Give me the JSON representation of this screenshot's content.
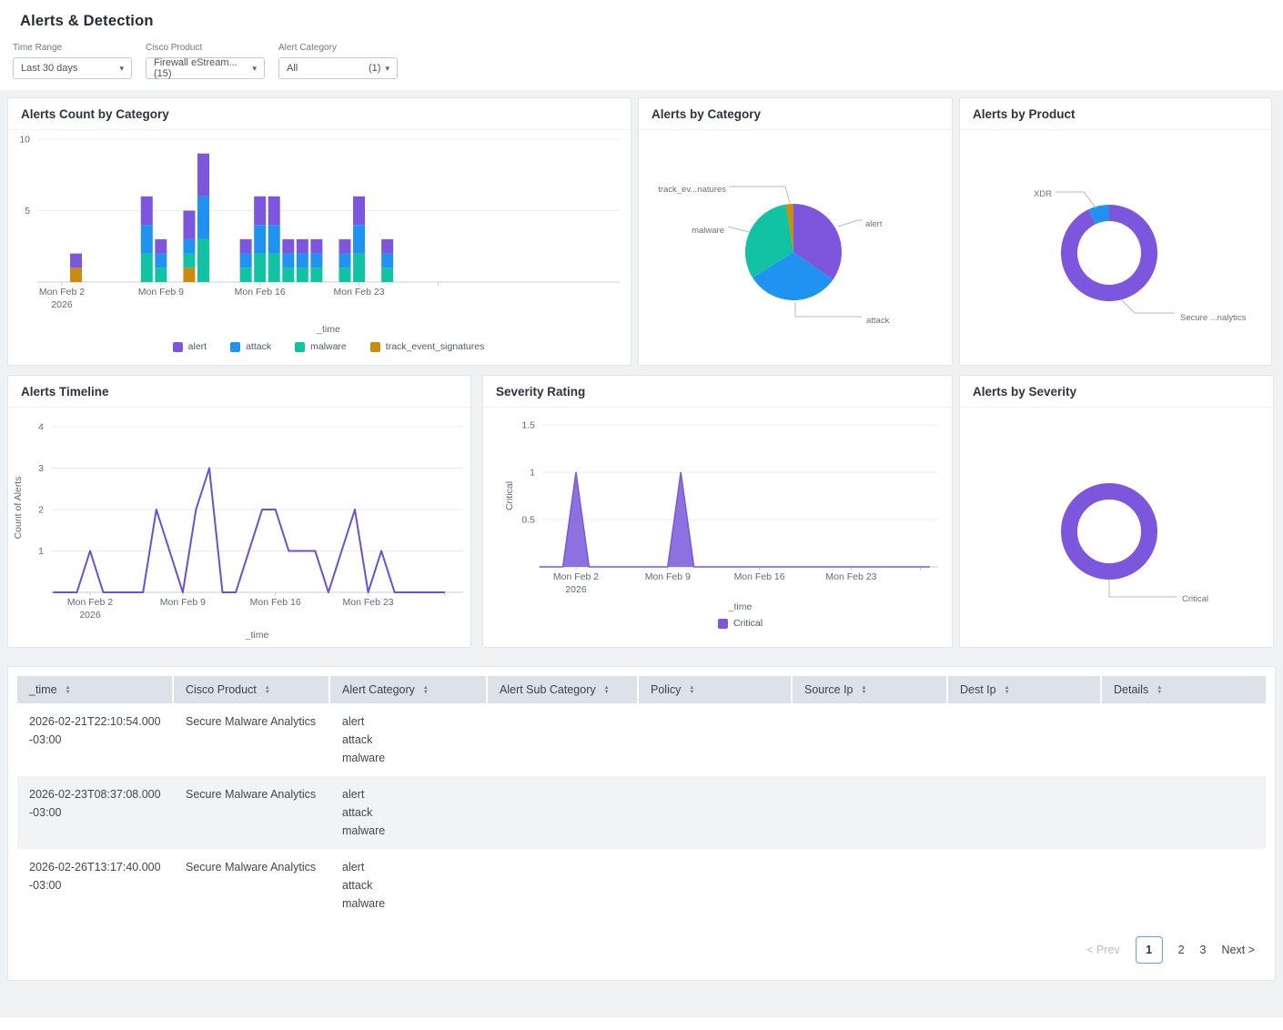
{
  "page": {
    "title": "Alerts & Detection"
  },
  "icons": {
    "dropdown_caret": "▾",
    "sort_asc": "▲",
    "sort_desc": "▼",
    "prev_chevron": "<",
    "next_chevron": ">"
  },
  "filters": {
    "time_range": {
      "label": "Time Range",
      "value": "Last 30 days"
    },
    "cisco_product": {
      "label": "Cisco Product",
      "value": "Firewall eStream... (15)"
    },
    "alert_category": {
      "label": "Alert Category",
      "value": "All",
      "count": "(1)"
    }
  },
  "colors": {
    "alert": "#7c56dd",
    "attack": "#1f93ef",
    "malware": "#11c3a2",
    "track_event_signatures": "#cb8b0e",
    "critical": "#7c56dd",
    "xdr": "#1f93ef"
  },
  "chart_data": [
    {
      "id": "alerts_count_by_category",
      "type": "bar",
      "stacked": true,
      "title": "Alerts Count by Category",
      "xlabel": "_time",
      "ylim": [
        0,
        10
      ],
      "y_ticks": [
        5,
        10
      ],
      "x_ticks": [
        {
          "day": 2,
          "lines": [
            "Mon Feb 2",
            "2026"
          ]
        },
        {
          "day": 9,
          "lines": [
            "Mon Feb 9"
          ]
        },
        {
          "day": 16,
          "lines": [
            "Mon Feb 16"
          ]
        },
        {
          "day": 23,
          "lines": [
            "Mon Feb 23"
          ]
        }
      ],
      "series": [
        {
          "name": "alert",
          "color": "#7c56dd"
        },
        {
          "name": "attack",
          "color": "#1f93ef"
        },
        {
          "name": "malware",
          "color": "#11c3a2"
        },
        {
          "name": "track_event_signatures",
          "color": "#cb8b0e"
        }
      ],
      "stack_order": [
        "track_event_signatures",
        "malware",
        "attack",
        "alert"
      ],
      "bars": [
        {
          "day": 3,
          "values": {
            "track_event_signatures": 1,
            "alert": 1
          }
        },
        {
          "day": 8,
          "values": {
            "malware": 2,
            "attack": 2,
            "alert": 2
          }
        },
        {
          "day": 9,
          "values": {
            "malware": 1,
            "attack": 1,
            "alert": 1
          }
        },
        {
          "day": 11,
          "values": {
            "track_event_signatures": 1,
            "malware": 1,
            "attack": 1,
            "alert": 2
          }
        },
        {
          "day": 12,
          "values": {
            "malware": 3,
            "attack": 3,
            "alert": 3
          }
        },
        {
          "day": 15,
          "values": {
            "malware": 1,
            "attack": 1,
            "alert": 1
          }
        },
        {
          "day": 16,
          "values": {
            "malware": 2,
            "attack": 2,
            "alert": 2
          }
        },
        {
          "day": 17,
          "values": {
            "malware": 2,
            "attack": 2,
            "alert": 2
          }
        },
        {
          "day": 18,
          "values": {
            "malware": 1,
            "attack": 1,
            "alert": 1
          }
        },
        {
          "day": 19,
          "values": {
            "malware": 1,
            "attack": 1,
            "alert": 1
          }
        },
        {
          "day": 20,
          "values": {
            "malware": 1,
            "attack": 1,
            "alert": 1
          }
        },
        {
          "day": 22,
          "values": {
            "malware": 1,
            "attack": 1,
            "alert": 1
          }
        },
        {
          "day": 23,
          "values": {
            "malware": 2,
            "attack": 2,
            "alert": 2
          }
        },
        {
          "day": 25,
          "values": {
            "malware": 1,
            "attack": 1,
            "alert": 1
          }
        }
      ]
    },
    {
      "id": "alerts_by_category",
      "type": "pie",
      "title": "Alerts by Category",
      "slices": [
        {
          "label": "alert",
          "value": 21,
          "color": "#7c56dd"
        },
        {
          "label": "attack",
          "value": 19,
          "color": "#1f93ef"
        },
        {
          "label": "malware",
          "value": 19,
          "color": "#11c3a2"
        },
        {
          "label": "track_ev...natures",
          "value": 1.5,
          "color": "#cb8b0e"
        }
      ]
    },
    {
      "id": "alerts_by_product",
      "type": "donut",
      "title": "Alerts by Product",
      "slices": [
        {
          "label": "Secure ...nalytics",
          "value": 93,
          "color": "#7c56dd"
        },
        {
          "label": "XDR",
          "value": 7,
          "color": "#1f93ef"
        }
      ]
    },
    {
      "id": "alerts_timeline",
      "type": "line",
      "title": "Alerts Timeline",
      "xlabel": "_time",
      "ylabel": "Count of Alerts",
      "color": "#6b4fd4",
      "ylim": [
        0,
        4
      ],
      "y_ticks": [
        1,
        2,
        3,
        4
      ],
      "x_ticks": [
        {
          "day": 2,
          "lines": [
            "Mon Feb 2",
            "2026"
          ]
        },
        {
          "day": 9,
          "lines": [
            "Mon Feb 9"
          ]
        },
        {
          "day": 16,
          "lines": [
            "Mon Feb 16"
          ]
        },
        {
          "day": 23,
          "lines": [
            "Mon Feb 23"
          ]
        }
      ],
      "points": [
        [
          -0.8,
          0
        ],
        [
          1,
          0
        ],
        [
          2,
          1
        ],
        [
          3,
          0
        ],
        [
          6,
          0
        ],
        [
          7,
          2
        ],
        [
          9,
          0
        ],
        [
          10,
          2
        ],
        [
          11,
          3
        ],
        [
          12,
          0
        ],
        [
          13,
          0
        ],
        [
          15,
          2
        ],
        [
          16,
          2
        ],
        [
          17,
          1
        ],
        [
          19,
          1
        ],
        [
          20,
          0
        ],
        [
          22,
          2
        ],
        [
          23,
          0
        ],
        [
          24,
          1
        ],
        [
          25,
          0
        ],
        [
          28.8,
          0
        ]
      ]
    },
    {
      "id": "severity_rating",
      "type": "area",
      "title": "Severity Rating",
      "xlabel": "_time",
      "ylabel": "Critical",
      "color": "#7c56dd",
      "fill": "#8265dc",
      "ylim": [
        0,
        1.5
      ],
      "y_ticks": [
        0.5,
        1,
        1.5
      ],
      "x_ticks": [
        {
          "day": 2,
          "lines": [
            "Mon Feb 2",
            "2026"
          ]
        },
        {
          "day": 9,
          "lines": [
            "Mon Feb 9"
          ]
        },
        {
          "day": 16,
          "lines": [
            "Mon Feb 16"
          ]
        },
        {
          "day": 23,
          "lines": [
            "Mon Feb 23"
          ]
        }
      ],
      "legend": [
        {
          "name": "Critical",
          "color": "#7c56dd"
        }
      ],
      "points": [
        [
          -0.8,
          0
        ],
        [
          1,
          0
        ],
        [
          2,
          1
        ],
        [
          3,
          0
        ],
        [
          9,
          0
        ],
        [
          10,
          1
        ],
        [
          11,
          0
        ],
        [
          29,
          0
        ]
      ]
    },
    {
      "id": "alerts_by_severity",
      "type": "donut",
      "title": "Alerts by Severity",
      "slices": [
        {
          "label": "Critical",
          "value": 100,
          "color": "#7c56dd"
        }
      ]
    }
  ],
  "table": {
    "columns": [
      {
        "label": "_time"
      },
      {
        "label": "Cisco Product"
      },
      {
        "label": "Alert Category"
      },
      {
        "label": "Alert Sub Category"
      },
      {
        "label": "Policy"
      },
      {
        "label": "Source Ip"
      },
      {
        "label": "Dest Ip"
      },
      {
        "label": "Details"
      }
    ],
    "rows": [
      {
        "time": "2026-02-21T22:10:54.000-03:00",
        "product": "Secure Malware Analytics",
        "categories": [
          "alert",
          "attack",
          "malware"
        ],
        "sub_category": "",
        "policy": "",
        "source_ip": "",
        "dest_ip": "",
        "details": ""
      },
      {
        "time": "2026-02-23T08:37:08.000-03:00",
        "product": "Secure Malware Analytics",
        "categories": [
          "alert",
          "attack",
          "malware"
        ],
        "sub_category": "",
        "policy": "",
        "source_ip": "",
        "dest_ip": "",
        "details": ""
      },
      {
        "time": "2026-02-26T13:17:40.000-03:00",
        "product": "Secure Malware Analytics",
        "categories": [
          "alert",
          "attack",
          "malware"
        ],
        "sub_category": "",
        "policy": "",
        "source_ip": "",
        "dest_ip": "",
        "details": ""
      }
    ]
  },
  "pagination": {
    "prev_label": "Prev",
    "next_label": "Next",
    "pages": [
      "1",
      "2",
      "3"
    ],
    "current_page": "1"
  }
}
